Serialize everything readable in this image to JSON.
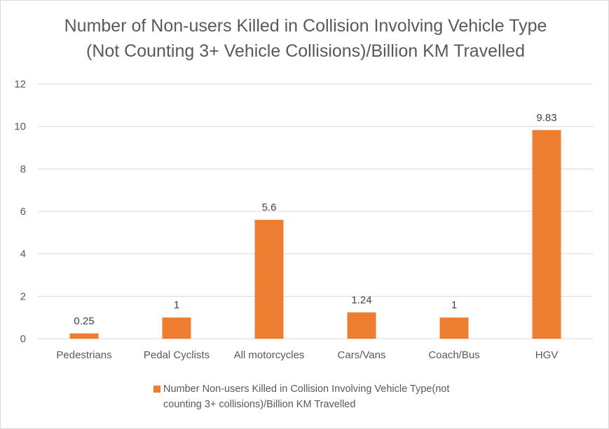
{
  "chart_data": {
    "type": "bar",
    "title": "Number of Non-users Killed in Collision Involving Vehicle Type (Not Counting 3+ Vehicle Collisions)/Billion KM Travelled",
    "categories": [
      "Pedestrians",
      "Pedal Cyclists",
      "All motorcycles",
      "Cars/Vans",
      "Coach/Bus",
      "HGV"
    ],
    "series": [
      {
        "name": "Number Non-users Killed in Collision Involving Vehicle Type(not counting 3+ collisions)/Billion KM Travelled",
        "values": [
          0.25,
          1,
          5.6,
          1.24,
          1,
          9.83
        ],
        "data_labels": [
          "0.25",
          "1",
          "5.6",
          "1.24",
          "1",
          "9.83"
        ],
        "color": "#ED7D31"
      }
    ],
    "xlabel": "",
    "ylabel": "",
    "ylim": [
      0,
      12
    ],
    "yticks": [
      "0",
      "2",
      "4",
      "6",
      "8",
      "10",
      "12"
    ],
    "grid": true,
    "gridline_color": "#d9d9d9",
    "legend_position": "bottom"
  }
}
